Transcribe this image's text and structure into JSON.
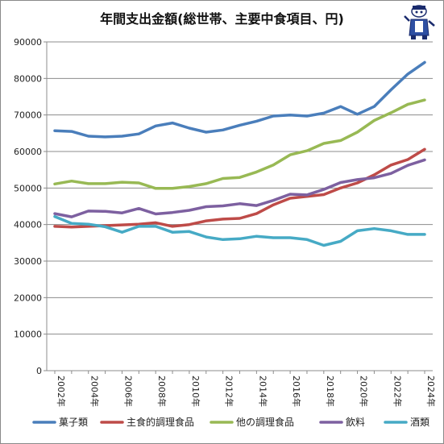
{
  "chart_data": {
    "type": "line",
    "title": "年間支出金額(総世帯、主要中食項目、円)",
    "xlabel": "",
    "ylabel": "",
    "ylim": [
      0,
      90000
    ],
    "yticks": [
      0,
      10000,
      20000,
      30000,
      40000,
      50000,
      60000,
      70000,
      80000,
      90000
    ],
    "ytick_labels": [
      "0",
      "10000",
      "20000",
      "30000",
      "40000",
      "50000",
      "60000",
      "70000",
      "80000",
      "90000"
    ],
    "x": [
      2002,
      2003,
      2004,
      2005,
      2006,
      2007,
      2008,
      2009,
      2010,
      2011,
      2012,
      2013,
      2014,
      2015,
      2016,
      2017,
      2018,
      2019,
      2020,
      2021,
      2022,
      2023,
      2024
    ],
    "xtick_labels": [
      "2002年",
      "2004年",
      "2006年",
      "2008年",
      "2010年",
      "2012年",
      "2014年",
      "2016年",
      "2018年",
      "2020年",
      "2022年",
      "2024年"
    ],
    "grid": true,
    "legend_position": "bottom",
    "series": [
      {
        "name": "菓子類",
        "color": "#4a7ebb",
        "values": [
          65700,
          65500,
          64200,
          64000,
          64200,
          64800,
          67000,
          67800,
          66400,
          65300,
          65900,
          67200,
          68300,
          69700,
          70000,
          69700,
          70500,
          72300,
          70200,
          72300,
          76900,
          81200,
          84400
        ]
      },
      {
        "name": "主食的調理食品",
        "color": "#be4b48",
        "values": [
          39500,
          39300,
          39500,
          39700,
          39900,
          40100,
          40500,
          39500,
          40000,
          41000,
          41500,
          41700,
          43000,
          45400,
          47200,
          47700,
          48200,
          50000,
          51400,
          53600,
          56300,
          57800,
          60600
        ]
      },
      {
        "name": "他の調理食品",
        "color": "#98b954",
        "values": [
          51100,
          51900,
          51200,
          51200,
          51600,
          51400,
          49900,
          49900,
          50400,
          51200,
          52600,
          52900,
          54400,
          56300,
          59100,
          60200,
          62200,
          63000,
          65300,
          68500,
          70600,
          72900,
          74100
        ]
      },
      {
        "name": "飲料",
        "color": "#7d60a0",
        "values": [
          43000,
          42100,
          43700,
          43600,
          43200,
          44400,
          42900,
          43300,
          43900,
          44900,
          45100,
          45700,
          45200,
          46600,
          48300,
          48100,
          49600,
          51500,
          52300,
          52800,
          54000,
          56200,
          57700
        ]
      },
      {
        "name": "酒類",
        "color": "#46aac5",
        "values": [
          42200,
          40300,
          40100,
          39400,
          37900,
          39500,
          39500,
          37900,
          38100,
          36600,
          35900,
          36100,
          36800,
          36400,
          36400,
          35900,
          34300,
          35400,
          38300,
          38900,
          38300,
          37300,
          37300
        ]
      }
    ]
  }
}
